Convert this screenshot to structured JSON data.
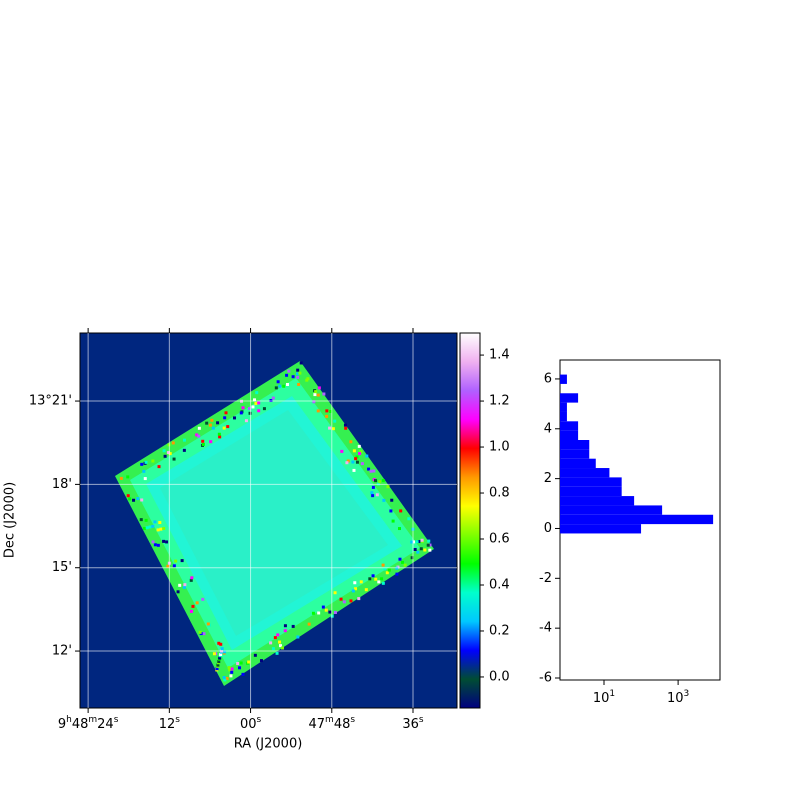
{
  "chart_data": [
    {
      "type": "image",
      "xlabel": "RA (J2000)",
      "ylabel": "Dec (J2000)",
      "xlim": [
        25.2,
        -30.5
      ],
      "xticks": [
        {
          "value": 24,
          "label": "9h48m24s"
        },
        {
          "value": 12,
          "label": "12s"
        },
        {
          "value": 0,
          "label": "00s"
        },
        {
          "value": -12,
          "label": "47m48s"
        },
        {
          "value": -24,
          "label": "36s"
        }
      ],
      "ylim": [
        9.95,
        23.45
      ],
      "yticks": [
        {
          "value": 21,
          "label": "13°21'"
        },
        {
          "value": 18,
          "label": "18'"
        },
        {
          "value": 15,
          "label": "15'"
        },
        {
          "value": 12,
          "label": "12'"
        }
      ],
      "grid": true,
      "background": "#00267f",
      "colorbar": {
        "lim": [
          -0.135,
          1.496
        ],
        "ticks": [
          {
            "value": 0,
            "label": "0.0"
          },
          0.2,
          0.4,
          0.6,
          0.8,
          {
            "value": 1,
            "label": "1.0"
          },
          1.2,
          1.4
        ],
        "colormap": [
          "#000080",
          "#004d33",
          "#0000ff",
          "#00c8ff",
          "#00ffcc",
          "#00ff00",
          "#80ff00",
          "#ffff00",
          "#ff9900",
          "#ff0000",
          "#ff00ff",
          "#b060ff",
          "#f0b0f0",
          "#ffffff"
        ]
      }
    },
    {
      "type": "histogram",
      "orientation": "horizontal",
      "xscale": "log",
      "color": "#0000ff",
      "bins": [
        -0.2,
        0.175,
        0.55,
        0.925,
        1.3,
        1.675,
        2.05,
        2.425,
        2.8,
        3.175,
        3.55,
        3.925,
        4.3,
        4.675,
        5.05,
        5.425,
        5.8,
        6.175
      ],
      "counts": [
        100,
        8800,
        370,
        65,
        30,
        30,
        14,
        6,
        4,
        4,
        2,
        2,
        1,
        1,
        2,
        0,
        1
      ],
      "xlim": [
        0.65,
        13500
      ],
      "xticks": [
        {
          "value": 10,
          "label": "10^1"
        },
        {
          "value": 1000,
          "label": "10^3"
        }
      ],
      "ylim": [
        -6.08,
        6.76
      ],
      "yticks": [
        -6,
        -4,
        -2,
        0,
        2,
        4,
        6
      ]
    }
  ]
}
